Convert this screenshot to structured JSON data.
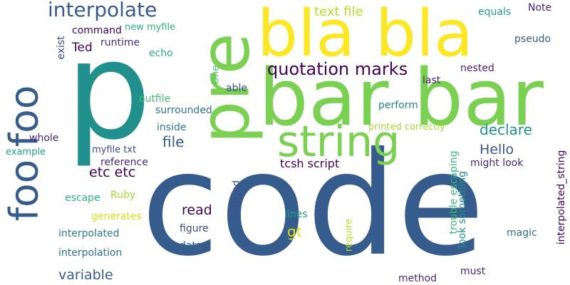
{
  "words": [
    {
      "text": "code",
      "color": "#365c8d",
      "vertical": false
    },
    {
      "text": "p",
      "color": "#21908d",
      "vertical": false
    },
    {
      "text": "bar bar",
      "color": "#7ad151",
      "vertical": false
    },
    {
      "text": "bla bla",
      "color": "#fde725",
      "vertical": false
    },
    {
      "text": "pre",
      "color": "#7ad151",
      "vertical": true
    },
    {
      "text": "foo foo",
      "color": "#365c8d",
      "vertical": true
    },
    {
      "text": "string",
      "color": "#7ad151",
      "vertical": false
    },
    {
      "text": "interpolate",
      "color": "#365c8d",
      "vertical": false
    },
    {
      "text": "quotation marks",
      "color": "#440154",
      "vertical": false
    },
    {
      "text": "text file",
      "color": "#b5de2b",
      "vertical": false
    },
    {
      "text": "declare",
      "color": "#21908d",
      "vertical": false
    },
    {
      "text": "Hello",
      "color": "#3b528b",
      "vertical": false
    },
    {
      "text": "etc etc",
      "color": "#440154",
      "vertical": false
    },
    {
      "text": "file",
      "color": "#365c8d",
      "vertical": false
    },
    {
      "text": "read",
      "color": "#440154",
      "vertical": false
    },
    {
      "text": "gt",
      "color": "#dde318",
      "vertical": false
    },
    {
      "text": "variable",
      "color": "#365c8d",
      "vertical": false
    },
    {
      "text": "interpolated_string",
      "color": "#440154",
      "vertical": true
    },
    {
      "text": "Ted",
      "color": "#440154",
      "vertical": false
    },
    {
      "text": "command",
      "color": "#440154",
      "vertical": false
    },
    {
      "text": "runtime",
      "color": "#472c7a",
      "vertical": false
    },
    {
      "text": "new myfile",
      "color": "#2db27d",
      "vertical": false
    },
    {
      "text": "exist",
      "color": "#3e4989",
      "vertical": true
    },
    {
      "text": "echo",
      "color": "#2ab07f",
      "vertical": false
    },
    {
      "text": "equals",
      "color": "#20a386",
      "vertical": false
    },
    {
      "text": "Note",
      "color": "#482677",
      "vertical": false
    },
    {
      "text": "pseudo",
      "color": "#365c8d",
      "vertical": false
    },
    {
      "text": "nested",
      "color": "#482677",
      "vertical": false
    },
    {
      "text": "last",
      "color": "#482677",
      "vertical": false
    },
    {
      "text": "able",
      "color": "#3e4989",
      "vertical": false
    },
    {
      "text": "One",
      "color": "#4ac16d",
      "vertical": true
    },
    {
      "text": "outfile",
      "color": "#3dbc74",
      "vertical": false
    },
    {
      "text": "surrounded",
      "color": "#2a788e",
      "vertical": false
    },
    {
      "text": "perform",
      "color": "#26828e",
      "vertical": false
    },
    {
      "text": "printed correctly",
      "color": "#a2da37",
      "vertical": false
    },
    {
      "text": "inside",
      "color": "#2a788e",
      "vertical": false
    },
    {
      "text": "whole",
      "color": "#482677",
      "vertical": false
    },
    {
      "text": "example",
      "color": "#1fa188",
      "vertical": false
    },
    {
      "text": "myfile txt",
      "color": "#3e4989",
      "vertical": false
    },
    {
      "text": "reference",
      "color": "#482677",
      "vertical": false
    },
    {
      "text": "tcsh script",
      "color": "#440154",
      "vertical": false
    },
    {
      "text": "might look",
      "color": "#482677",
      "vertical": false
    },
    {
      "text": "trouble escaping",
      "color": "#35b779",
      "vertical": true
    },
    {
      "text": "look something",
      "color": "#21908d",
      "vertical": true
    },
    {
      "text": "escape",
      "color": "#2db27d",
      "vertical": false
    },
    {
      "text": "Ruby",
      "color": "#a5db36",
      "vertical": false
    },
    {
      "text": "generates",
      "color": "#d8e219",
      "vertical": false
    },
    {
      "text": "around",
      "color": "#3b528b",
      "vertical": true
    },
    {
      "text": "lines",
      "color": "#1fa188",
      "vertical": false
    },
    {
      "text": "figure",
      "color": "#3e4989",
      "vertical": false
    },
    {
      "text": "interpolated",
      "color": "#287d8e",
      "vertical": false
    },
    {
      "text": "data",
      "color": "#31688e",
      "vertical": false
    },
    {
      "text": "require",
      "color": "#b5de2b",
      "vertical": true
    },
    {
      "text": "magic",
      "color": "#2c728e",
      "vertical": false
    },
    {
      "text": "interpolation",
      "color": "#2c728e",
      "vertical": false
    },
    {
      "text": "must",
      "color": "#482677",
      "vertical": false
    },
    {
      "text": "method",
      "color": "#472c7a",
      "vertical": false
    }
  ]
}
